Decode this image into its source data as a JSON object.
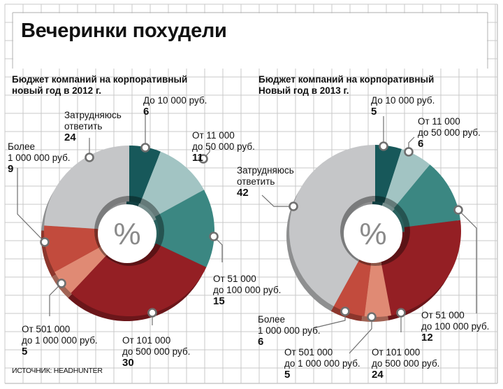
{
  "header": {
    "title": "Вечеринки похудели"
  },
  "source": "ИСТОЧНИК: HEADHUNTER",
  "center_symbol": "%",
  "colors": {
    "grid": "#c8c8c8",
    "up_to_10k": "#17585a",
    "11k_50k": "#a2c4c3",
    "51k_100k": "#3b8782",
    "101k_500k": "#941f24",
    "501k_1m": "#e08a74",
    "over_1m": "#c24b3d",
    "hard_to_say": "#c5c6c8"
  },
  "chart_data": [
    {
      "type": "pie",
      "variant": "donut",
      "title": "Бюджет компаний на корпоративный новый год в 2012 г.",
      "title_lines": [
        "Бюджет компаний на корпоративный",
        "новый год в 2012 г."
      ],
      "unit": "%",
      "slices": [
        {
          "key": "up_to_10k",
          "label_lines": [
            "До 10 000 руб."
          ],
          "value": 6
        },
        {
          "key": "11k_50k",
          "label_lines": [
            "От 11 000",
            "до 50 000 руб."
          ],
          "value": 11
        },
        {
          "key": "51k_100k",
          "label_lines": [
            "От 51 000",
            "до 100 000 руб."
          ],
          "value": 15
        },
        {
          "key": "101k_500k",
          "label_lines": [
            "От 101 000",
            "до 500 000 руб."
          ],
          "value": 30
        },
        {
          "key": "501k_1m",
          "label_lines": [
            "От 501 000",
            "до 1 000 000 руб."
          ],
          "value": 5
        },
        {
          "key": "over_1m",
          "label_lines": [
            "Более",
            "1 000 000 руб."
          ],
          "value": 9
        },
        {
          "key": "hard_to_say",
          "label_lines": [
            "Затрудняюсь",
            "ответить"
          ],
          "value": 24
        }
      ]
    },
    {
      "type": "pie",
      "variant": "donut",
      "title": "Бюджет компаний на корпоративный Новый год в 2013 г.",
      "title_lines": [
        "Бюджет компаний на корпоративный",
        "Новый год в 2013 г."
      ],
      "unit": "%",
      "slices": [
        {
          "key": "up_to_10k",
          "label_lines": [
            "До 10 000 руб."
          ],
          "value": 5
        },
        {
          "key": "11k_50k",
          "label_lines": [
            "От 11 000",
            "до 50 000 руб."
          ],
          "value": 6
        },
        {
          "key": "51k_100k",
          "label_lines": [
            "От 51 000",
            "до 100 000 руб."
          ],
          "value": 12
        },
        {
          "key": "101k_500k",
          "label_lines": [
            "От 101 000",
            "до 500 000 руб."
          ],
          "value": 24
        },
        {
          "key": "501k_1m",
          "label_lines": [
            "От 501 000",
            "до 1 000 000 руб."
          ],
          "value": 5
        },
        {
          "key": "over_1m",
          "label_lines": [
            "Более",
            "1 000 000 руб."
          ],
          "value": 6
        },
        {
          "key": "hard_to_say",
          "label_lines": [
            "Затрудняюсь",
            "ответить"
          ],
          "value": 42
        }
      ]
    }
  ]
}
